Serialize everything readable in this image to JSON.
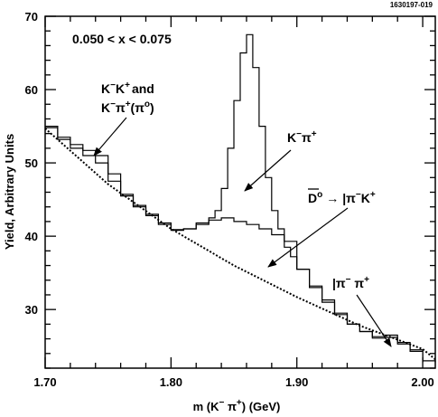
{
  "figure_id": "1630197-019",
  "chart_data": {
    "type": "line",
    "xlabel": {
      "main": "m (K",
      "sup1": "−",
      "mid": " π",
      "sup2": "+",
      "tail": ") (GeV)"
    },
    "ylabel": "Yield, Arbitrary Units",
    "xlim": [
      1.7,
      2.01
    ],
    "ylim": [
      22,
      70
    ],
    "x_ticks": [
      "1.70",
      "1.80",
      "1.90",
      "2.00"
    ],
    "x_tick_values": [
      1.7,
      1.8,
      1.9,
      2.0
    ],
    "y_ticks": [
      "30",
      "40",
      "50",
      "60",
      "70"
    ],
    "y_tick_values": [
      30,
      40,
      50,
      60,
      70
    ],
    "cut_label": "0.050 < x < 0.075",
    "annotations": {
      "kk": {
        "l1a": "K",
        "l1b": "−",
        "l1c": "K",
        "l1d": "+",
        "l1e": "and",
        "l2a": "K",
        "l2b": "−",
        "l2c": "π",
        "l2d": "+",
        "l2e": "(π",
        "l2f": "o",
        "l2g": ")"
      },
      "kpi": {
        "a": "K",
        "b": "−",
        "c": "π",
        "d": "+"
      },
      "dbar": {
        "a": "D",
        "b": "o",
        "c": "→",
        "d": "|π",
        "e": "−",
        "f": "K",
        "g": "+"
      },
      "pipi": {
        "a": "|π",
        "b": "−",
        "c": " π",
        "d": "+"
      }
    },
    "series": [
      {
        "style": "dotted",
        "x": [
          1.7,
          1.75,
          1.8,
          1.85,
          1.9,
          1.95,
          2.0,
          2.01
        ],
        "y": [
          54.7,
          47.1,
          41.0,
          36.0,
          31.7,
          27.8,
          24.6,
          23.2
        ]
      },
      {
        "style": "histogram",
        "x": [
          1.7,
          1.71,
          1.72,
          1.73,
          1.74,
          1.75,
          1.76,
          1.77,
          1.78,
          1.79,
          1.8,
          1.81,
          1.82,
          1.83,
          1.835,
          1.84,
          1.845,
          1.85,
          1.855,
          1.86,
          1.865,
          1.87,
          1.875,
          1.88,
          1.885,
          1.89,
          1.895,
          1.9,
          1.91,
          1.92,
          1.93,
          1.94,
          1.95,
          1.96,
          1.97,
          1.98,
          1.99,
          2.0,
          2.01
        ],
        "y": [
          55.0,
          53.5,
          52.5,
          51.7,
          51.0,
          48.5,
          45.7,
          44.2,
          43.0,
          41.8,
          40.9,
          41.0,
          41.8,
          42.5,
          43.5,
          46.5,
          52.0,
          58.5,
          65.0,
          67.5,
          63.0,
          55.0,
          48.0,
          43.5,
          41.0,
          38.5,
          37.2,
          35.5,
          33.2,
          31.3,
          29.5,
          28.0,
          27.0,
          26.3,
          26.5,
          25.5,
          24.5,
          23.0,
          22.8
        ]
      },
      {
        "style": "histogram",
        "x": [
          1.7,
          1.71,
          1.72,
          1.73,
          1.74,
          1.75,
          1.76,
          1.77,
          1.78,
          1.79,
          1.8,
          1.81,
          1.82,
          1.83,
          1.84,
          1.85,
          1.86,
          1.87,
          1.88,
          1.89,
          1.9,
          1.91,
          1.92,
          1.93,
          1.94,
          1.95,
          1.96,
          1.97,
          1.98,
          1.99,
          2.0
        ],
        "y": [
          54.8,
          53.2,
          52.0,
          51.0,
          50.0,
          47.5,
          45.5,
          44.0,
          42.8,
          41.6,
          40.8,
          41.0,
          41.6,
          42.2,
          42.5,
          42.0,
          41.6,
          41.0,
          40.2,
          39.3,
          35.5,
          33.0,
          31.0,
          29.3,
          28.0,
          27.0,
          26.1,
          26.2,
          25.3,
          24.3,
          22.8
        ]
      }
    ]
  }
}
